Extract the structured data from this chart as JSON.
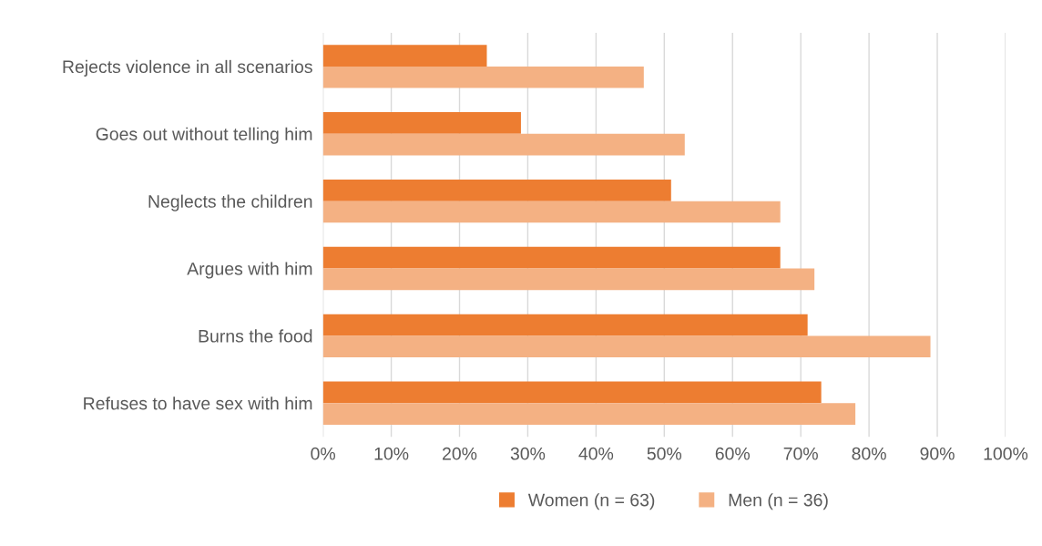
{
  "chart_data": {
    "type": "bar",
    "orientation": "horizontal",
    "categories": [
      "Rejects violence in all scenarios",
      "Goes out without telling him",
      "Neglects the children",
      "Argues with him",
      "Burns the food",
      "Refuses to have sex with him"
    ],
    "series": [
      {
        "name": "Women (n = 63)",
        "color": "#ed7d31",
        "values": [
          24,
          29,
          51,
          67,
          71,
          73
        ]
      },
      {
        "name": "Men (n = 36)",
        "color": "#f4b183",
        "values": [
          47,
          53,
          67,
          72,
          89,
          78
        ]
      }
    ],
    "xlim": [
      0,
      100
    ],
    "xticks": [
      {
        "value": 0,
        "label": "0%"
      },
      {
        "value": 10,
        "label": "10%"
      },
      {
        "value": 20,
        "label": "20%"
      },
      {
        "value": 30,
        "label": "30%"
      },
      {
        "value": 40,
        "label": "40%"
      },
      {
        "value": 50,
        "label": "50%"
      },
      {
        "value": 60,
        "label": "60%"
      },
      {
        "value": 70,
        "label": "70%"
      },
      {
        "value": 80,
        "label": "80%"
      },
      {
        "value": 90,
        "label": "90%"
      },
      {
        "value": 100,
        "label": "100%"
      }
    ],
    "grid": "x",
    "legend": "bottom"
  }
}
